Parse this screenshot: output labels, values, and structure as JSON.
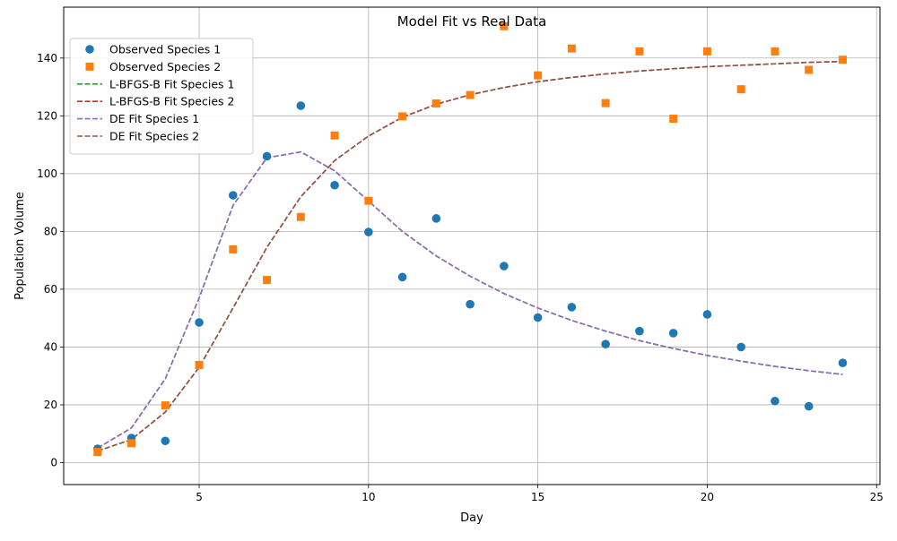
{
  "chart_data": {
    "type": "line",
    "title": "Model Fit vs Real Data",
    "xlabel": "Day",
    "ylabel": "Population Volume",
    "xlim": [
      1.0,
      25.1
    ],
    "ylim": [
      -7.6,
      157.6
    ],
    "xticks": [
      5,
      10,
      15,
      20,
      25
    ],
    "yticks": [
      0,
      20,
      40,
      60,
      80,
      100,
      120,
      140
    ],
    "grid": true,
    "legend_position": "upper-left",
    "x": [
      2,
      3,
      4,
      5,
      6,
      7,
      8,
      9,
      10,
      11,
      12,
      13,
      14,
      15,
      16,
      17,
      18,
      19,
      20,
      21,
      22,
      23,
      24
    ],
    "series": [
      {
        "name": "Observed Species 1",
        "style": "scatter",
        "marker": "circle",
        "color": "#1f77b4",
        "values": [
          4.8,
          8.5,
          7.5,
          48.5,
          92.5,
          106,
          123.5,
          96,
          79.8,
          64.2,
          84.5,
          54.8,
          68,
          50.2,
          53.8,
          41,
          45.5,
          44.8,
          51.3,
          40,
          21.3,
          19.5,
          34.5
        ]
      },
      {
        "name": "Observed Species 2",
        "style": "scatter",
        "marker": "square",
        "color": "#ff7f0e",
        "values": [
          3.7,
          6.7,
          19.8,
          33.8,
          73.8,
          63.2,
          85,
          113.2,
          90.6,
          119.8,
          124.3,
          127.2,
          151,
          134,
          143.3,
          124.4,
          142.3,
          119,
          142.3,
          129.2,
          142.3,
          135.9,
          139.4
        ]
      },
      {
        "name": "L-BFGS-B Fit Species 1",
        "style": "dashed",
        "color": "#2ca02c",
        "values": [
          5,
          12,
          29,
          57,
          89,
          105.5,
          107.5,
          101,
          90.5,
          80,
          71.5,
          64.5,
          58.5,
          53.5,
          49.2,
          45.5,
          42.2,
          39.5,
          37.1,
          35.1,
          33.3,
          31.8,
          30.5
        ]
      },
      {
        "name": "L-BFGS-B Fit Species 2",
        "style": "dashed",
        "color": "#d62728",
        "values": [
          4,
          8,
          17.5,
          33,
          53.5,
          74.5,
          92,
          104.5,
          113,
          119.5,
          124,
          127.3,
          129.8,
          131.8,
          133.3,
          134.5,
          135.5,
          136.3,
          137,
          137.5,
          138,
          138.5,
          138.8
        ]
      },
      {
        "name": "DE Fit Species 1",
        "style": "dashed",
        "color": "#9467bd",
        "values": [
          5,
          12,
          29,
          57,
          89,
          105.5,
          107.5,
          101,
          90.5,
          80,
          71.5,
          64.5,
          58.5,
          53.5,
          49.2,
          45.5,
          42.2,
          39.5,
          37.1,
          35.1,
          33.3,
          31.8,
          30.5
        ]
      },
      {
        "name": "DE Fit Species 2",
        "style": "dashed",
        "color": "#8c564b",
        "values": [
          4,
          8,
          17.5,
          33,
          53.5,
          74.5,
          92,
          104.5,
          113,
          119.5,
          124,
          127.3,
          129.8,
          131.8,
          133.3,
          134.5,
          135.5,
          136.3,
          137,
          137.5,
          138,
          138.5,
          138.8
        ]
      }
    ]
  }
}
